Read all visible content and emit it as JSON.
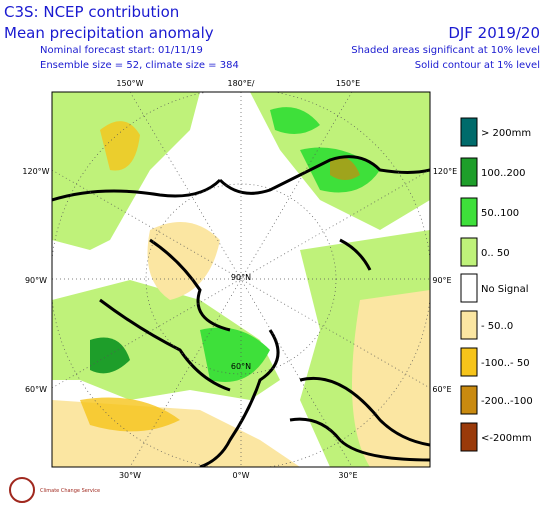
{
  "header": {
    "title": "C3S: NCEP contribution",
    "subtitle": "Mean precipitation anomaly",
    "forecast_start": "Nominal forecast start: 01/11/19",
    "ensemble": "Ensemble size = 52, climate size = 384",
    "season": "DJF 2019/20",
    "note_shaded": "Shaded areas significant at 10% level",
    "note_contour": "Solid contour at 1% level"
  },
  "map": {
    "labels": [
      "150°W",
      "180°E/",
      "150°E",
      "120°W",
      "120°E",
      "90°W",
      "90°E",
      "60°W",
      "60°E",
      "30°W",
      "0°W",
      "30°E",
      "90°N",
      "60°N"
    ]
  },
  "legend": {
    "items": [
      {
        "label": "> 200mm",
        "color": "#006b6b"
      },
      {
        "label": "100..200",
        "color": "#1e9e2a"
      },
      {
        "label": "50..100",
        "color": "#3ee03a"
      },
      {
        "label": "0.. 50",
        "color": "#bff27a"
      },
      {
        "label": "No Signal",
        "color": "#ffffff"
      },
      {
        "label": "- 50..0",
        "color": "#fbe6a2"
      },
      {
        "label": "-100..- 50",
        "color": "#f6c41a"
      },
      {
        "label": "-200..-100",
        "color": "#c98a10"
      },
      {
        "label": "<-200mm",
        "color": "#9a3a0a"
      }
    ]
  },
  "logo": {
    "text": "Climate Change Service"
  }
}
